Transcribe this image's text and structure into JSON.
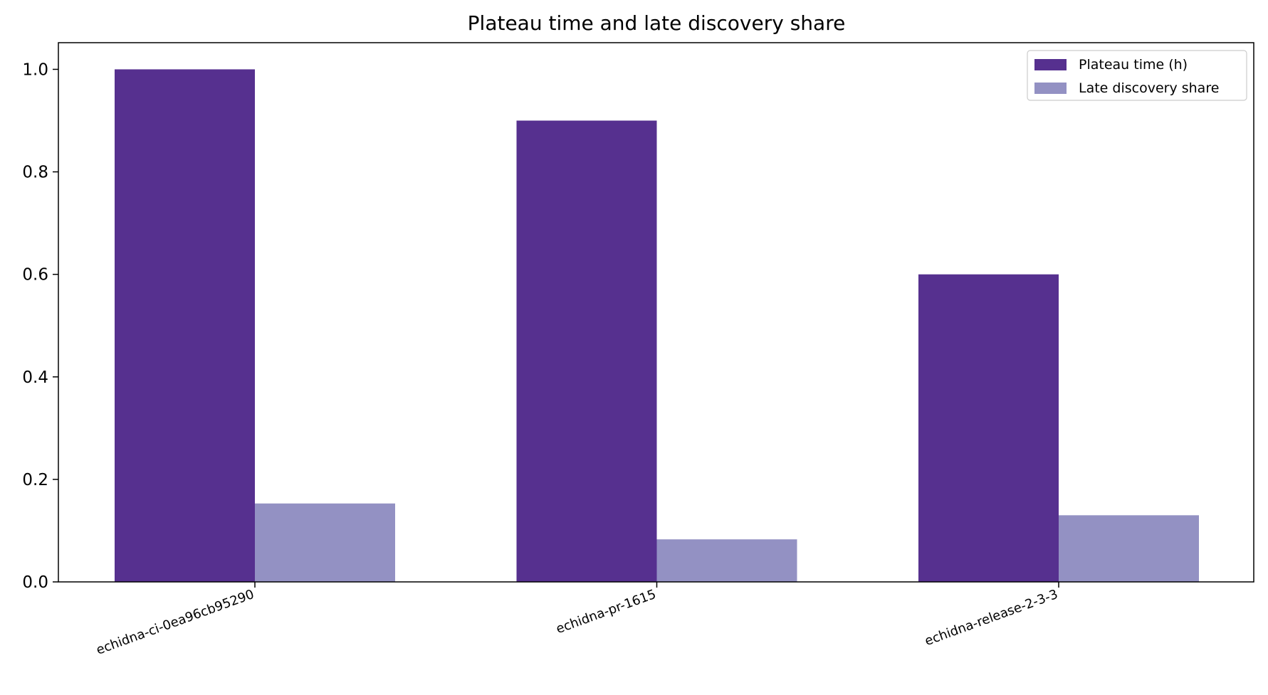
{
  "chart_data": {
    "type": "bar",
    "title": "Plateau time and late discovery share",
    "categories": [
      "echidna-ci-0ea96cb95290",
      "echidna-pr-1615",
      "echidna-release-2-3-3"
    ],
    "series": [
      {
        "name": "Plateau time (h)",
        "color": "#56308f",
        "values": [
          1.0,
          0.9,
          0.6
        ]
      },
      {
        "name": "Late discovery share",
        "color": "#9391c3",
        "values": [
          0.153,
          0.083,
          0.13
        ]
      }
    ],
    "ylim": [
      0,
      1.052
    ],
    "yticks": [
      {
        "value": 0,
        "label": "0.0"
      },
      {
        "value": 0.2,
        "label": "0.2"
      },
      {
        "value": 0.4,
        "label": "0.4"
      },
      {
        "value": 0.6,
        "label": "0.6"
      },
      {
        "value": 0.8,
        "label": "0.8"
      },
      {
        "value": 1.0,
        "label": "1.0"
      }
    ],
    "grid": false,
    "legend": "upper right"
  }
}
